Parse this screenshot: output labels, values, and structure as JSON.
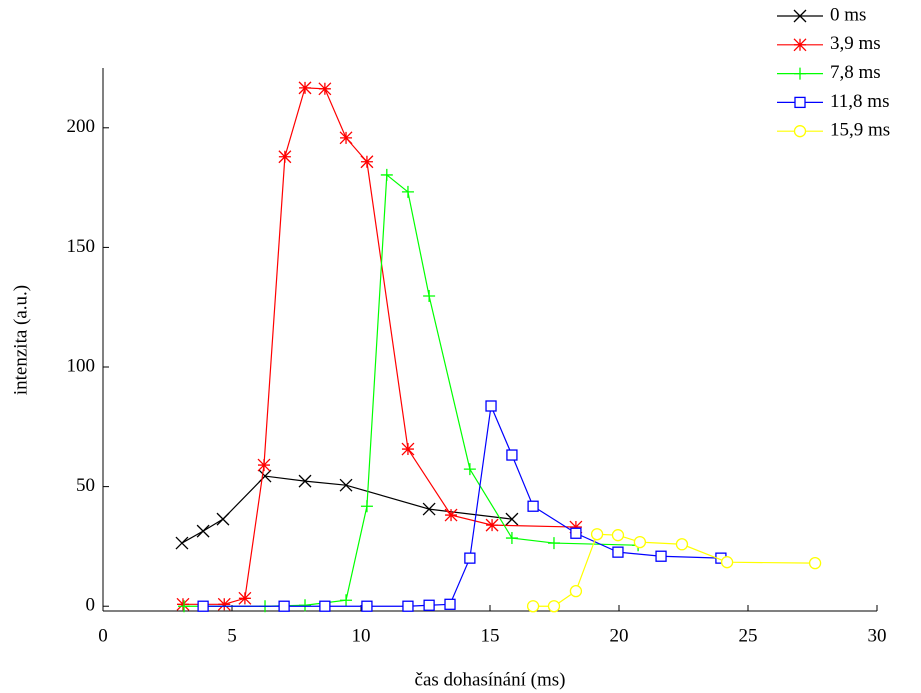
{
  "chart_data": {
    "type": "line",
    "x_label": "čas dohasínání (ms)",
    "y_label": "intenzita (a.u.)",
    "xlim": [
      0,
      30
    ],
    "xticks": [
      0,
      5,
      10,
      15,
      20,
      25,
      30
    ],
    "ylim": [
      -2,
      225
    ],
    "yticks": [
      0,
      50,
      100,
      150,
      200
    ],
    "legend": "top-right",
    "series": [
      {
        "name": "0 ms",
        "color": "#000000",
        "marker": "x",
        "x": [
          3.06,
          3.88,
          4.65,
          6.28,
          7.83,
          9.42,
          12.64,
          15.85
        ],
        "values": [
          26.4,
          31.4,
          36.4,
          54.4,
          52.3,
          50.6,
          40.6,
          36.4
        ]
      },
      {
        "name": "3,9 ms",
        "color": "#ff0000",
        "marker": "asterisk",
        "x": [
          3.1,
          4.7,
          5.5,
          6.24,
          7.05,
          7.83,
          8.6,
          9.42,
          10.23,
          11.82,
          13.49,
          15.08,
          18.33
        ],
        "values": [
          0.8,
          0.8,
          3.3,
          59,
          187.9,
          216.7,
          216.3,
          195.8,
          185.8,
          65.7,
          38.1,
          33.9,
          33.1
        ]
      },
      {
        "name": "7,8 ms",
        "color": "#00ff00",
        "marker": "plus",
        "x": [
          3.14,
          6.28,
          7.83,
          9.42,
          10.23,
          11.0,
          11.82,
          12.64,
          14.22,
          15.85,
          17.48,
          20.74
        ],
        "values": [
          0,
          0,
          0.4,
          2.5,
          41.8,
          180.3,
          173.2,
          129.7,
          57.3,
          28.5,
          26.4,
          25.5
        ]
      },
      {
        "name": "11,8 ms",
        "color": "#0000ff",
        "marker": "square",
        "x": [
          3.88,
          7.02,
          8.6,
          10.23,
          11.82,
          12.64,
          13.45,
          14.22,
          15.04,
          15.85,
          16.67,
          18.33,
          19.96,
          21.63,
          23.95
        ],
        "values": [
          0,
          0,
          0,
          0,
          0,
          0.4,
          0.8,
          20.1,
          83.7,
          63.2,
          41.8,
          30.5,
          22.6,
          20.9,
          20.1
        ]
      },
      {
        "name": "15,9 ms",
        "color": "#ffff00",
        "marker": "circle",
        "x": [
          16.67,
          17.48,
          18.33,
          19.15,
          19.96,
          20.81,
          22.44,
          24.19,
          27.6
        ],
        "values": [
          0,
          0,
          6.3,
          30.1,
          29.7,
          26.8,
          25.9,
          18.4,
          18
        ]
      }
    ]
  }
}
